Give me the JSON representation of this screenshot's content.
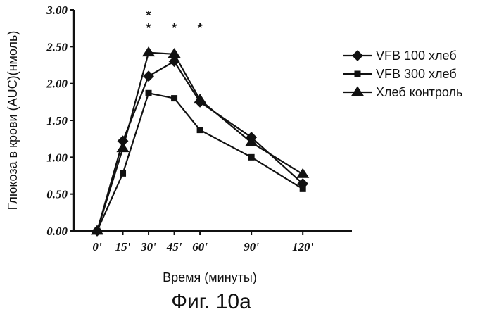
{
  "chart_data": {
    "type": "line",
    "xlabel": "Время (минуты)",
    "ylabel": "Глюкоза в крови (AUC)(нмоль)",
    "caption": "Фиг. 10a",
    "ylim": [
      0,
      3
    ],
    "y_ticks": [
      "0.00",
      "0.50",
      "1.00",
      "1.50",
      "2.00",
      "2.50",
      "3.00"
    ],
    "x_tick_labels": [
      "0'",
      "15'",
      "30'",
      "45'",
      "60'",
      "90'",
      "120'"
    ],
    "x": [
      0,
      15,
      30,
      45,
      60,
      90,
      120
    ],
    "grid": false,
    "legend_position": "right",
    "significance_marks": [
      {
        "label": "*",
        "x": 30,
        "y": 2.95
      },
      {
        "label": "*",
        "x": 30,
        "y": 2.78
      },
      {
        "label": "*",
        "x": 45,
        "y": 2.78
      },
      {
        "label": "*",
        "x": 60,
        "y": 2.78
      }
    ],
    "series": [
      {
        "name": "VFB 100 хлеб",
        "marker": "diamond",
        "points": [
          [
            0,
            0.0
          ],
          [
            15,
            1.22
          ],
          [
            30,
            2.1
          ],
          [
            45,
            2.3
          ],
          [
            60,
            1.75
          ],
          [
            90,
            1.27
          ],
          [
            120,
            0.64
          ]
        ]
      },
      {
        "name": "VFB 300 хлеб",
        "marker": "square",
        "points": [
          [
            0,
            0.0
          ],
          [
            15,
            0.78
          ],
          [
            30,
            1.87
          ],
          [
            45,
            1.8
          ],
          [
            60,
            1.37
          ],
          [
            90,
            1.0
          ],
          [
            120,
            0.57
          ]
        ]
      },
      {
        "name": "Хлеб контроль",
        "marker": "triangle",
        "points": [
          [
            0,
            0.0
          ],
          [
            15,
            1.12
          ],
          [
            30,
            2.42
          ],
          [
            45,
            2.4
          ],
          [
            60,
            1.78
          ],
          [
            90,
            1.2
          ],
          [
            120,
            0.77
          ]
        ]
      }
    ]
  }
}
